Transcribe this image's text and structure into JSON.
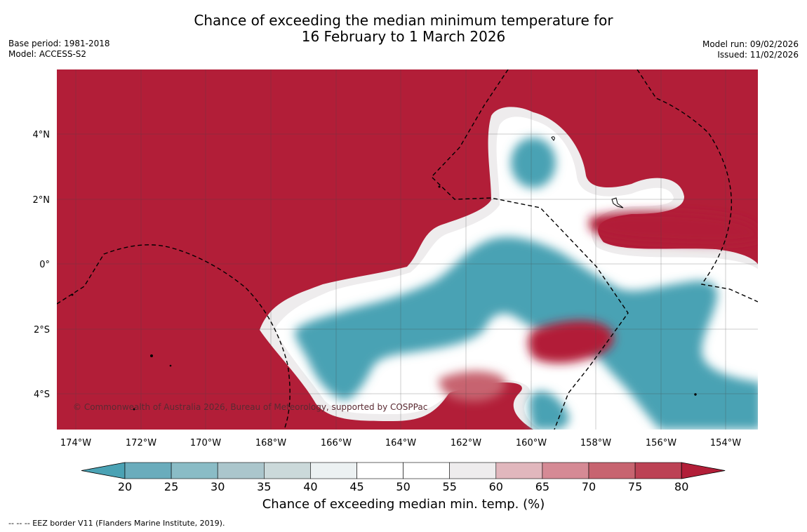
{
  "title": {
    "line1": "Chance of exceeding the median minimum temperature for",
    "line2": "16 February to 1 March 2026"
  },
  "meta_left": {
    "base_period": "Base period: 1981-2018",
    "model": "Model: ACCESS-S2"
  },
  "meta_right": {
    "model_run": "Model run: 09/02/2026",
    "issued": "Issued: 11/02/2026"
  },
  "map": {
    "copyright": "© Commonwealth of Australia 2026, Bureau of Meteorology, supported by COSPPac",
    "lon_labels": [
      "174°W",
      "172°W",
      "170°W",
      "168°W",
      "166°W",
      "164°W",
      "162°W",
      "160°W",
      "158°W",
      "156°W",
      "154°W"
    ],
    "lat_labels": [
      "4°N",
      "2°N",
      "0°",
      "2°S",
      "4°S"
    ],
    "colors": {
      "high": "#b21e38",
      "low": "#4aa2b4",
      "mid": "#ffffff"
    }
  },
  "colorbar": {
    "ticks": [
      "20",
      "25",
      "30",
      "35",
      "40",
      "45",
      "50",
      "55",
      "60",
      "65",
      "70",
      "75",
      "80"
    ],
    "colors": [
      "#4aa2b4",
      "#6aacbc",
      "#8abcc6",
      "#abc6cc",
      "#cbd9da",
      "#ecf1f2",
      "#ffffff",
      "#ffffff",
      "#eeeced",
      "#e1b7bd",
      "#d58a95",
      "#c76470",
      "#bc4255",
      "#b21e38"
    ],
    "title": "Chance of exceeding median min. temp. (%)"
  },
  "footnote": "--  --  -- EEZ border V11 (Flanders Marine Institute, 2019)."
}
